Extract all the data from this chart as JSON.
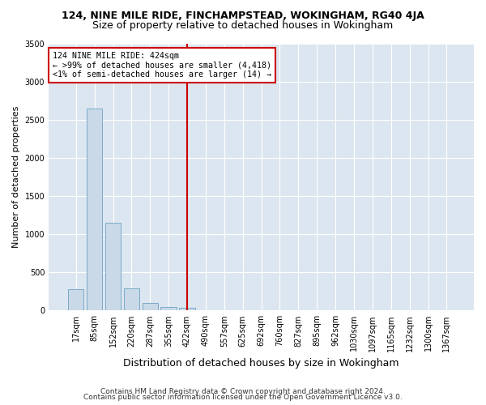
{
  "title1": "124, NINE MILE RIDE, FINCHAMPSTEAD, WOKINGHAM, RG40 4JA",
  "title2": "Size of property relative to detached houses in Wokingham",
  "xlabel": "Distribution of detached houses by size in Wokingham",
  "ylabel": "Number of detached properties",
  "bar_color": "#c9d9e8",
  "bar_edge_color": "#7aaac8",
  "annotation_line_color": "#cc0000",
  "annotation_box_color": "#cc0000",
  "annotation_line1": "124 NINE MILE RIDE: 424sqm",
  "annotation_line2": "← >99% of detached houses are smaller (4,418)",
  "annotation_line3": "<1% of semi-detached houses are larger (14) →",
  "vline_x_index": 6,
  "categories": [
    "17sqm",
    "85sqm",
    "152sqm",
    "220sqm",
    "287sqm",
    "355sqm",
    "422sqm",
    "490sqm",
    "557sqm",
    "625sqm",
    "692sqm",
    "760sqm",
    "827sqm",
    "895sqm",
    "962sqm",
    "1030sqm",
    "1097sqm",
    "1165sqm",
    "1232sqm",
    "1300sqm",
    "1367sqm"
  ],
  "values": [
    275,
    2650,
    1150,
    290,
    100,
    50,
    30,
    0,
    0,
    0,
    0,
    0,
    0,
    0,
    0,
    0,
    0,
    0,
    0,
    0,
    0
  ],
  "ylim": [
    0,
    3500
  ],
  "yticks": [
    0,
    500,
    1000,
    1500,
    2000,
    2500,
    3000,
    3500
  ],
  "grid_color": "#ffffff",
  "bg_color": "#dce6f0",
  "fig_bg_color": "#ffffff",
  "footer1": "Contains HM Land Registry data © Crown copyright and database right 2024.",
  "footer2": "Contains public sector information licensed under the Open Government Licence v3.0.",
  "title1_fontsize": 9,
  "title2_fontsize": 9,
  "ylabel_fontsize": 8,
  "xlabel_fontsize": 9,
  "tick_fontsize": 7,
  "footer_fontsize": 6.5
}
